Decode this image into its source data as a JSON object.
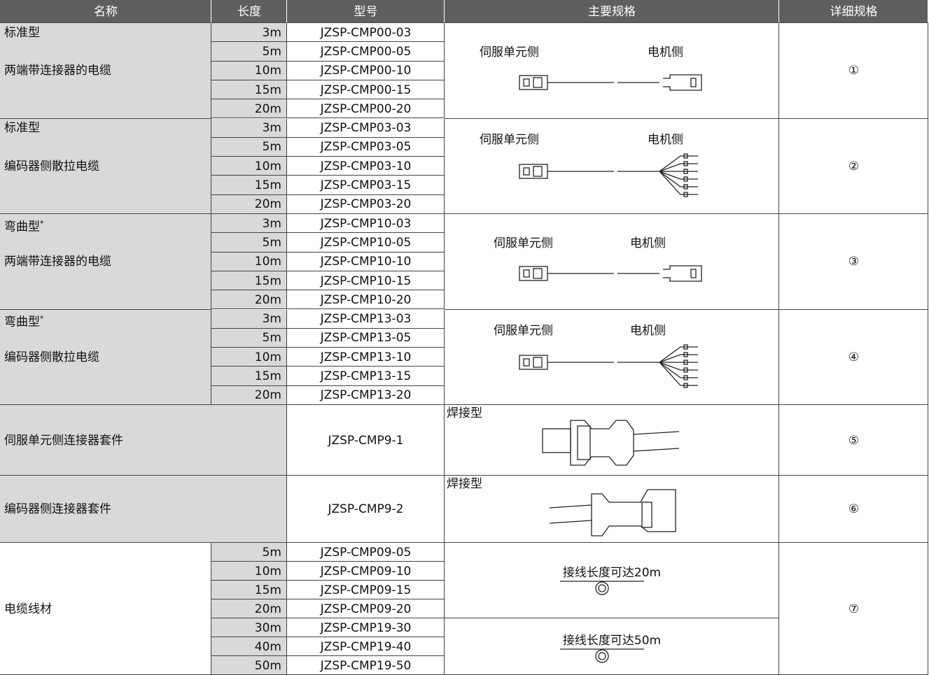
{
  "header": [
    "名称",
    "长度",
    "型号",
    "主要规格",
    "详细规格"
  ],
  "groups": [
    {
      "name": [
        "标准型",
        "两端带连接器的电缆"
      ],
      "rows": [
        [
          "3m",
          "JZSP-CMP00-03"
        ],
        [
          "5m",
          "JZSP-CMP00-05"
        ],
        [
          "10m",
          "JZSP-CMP00-10"
        ],
        [
          "15m",
          "JZSP-CMP00-15"
        ],
        [
          "20m",
          "JZSP-CMP00-20"
        ]
      ],
      "spec": [
        "伺服单元侧",
        "电机侧"
      ],
      "detail": "①"
    },
    {
      "name": [
        "标准型",
        "编码器侧散拉电缆"
      ],
      "rows": [
        [
          "3m",
          "JZSP-CMP03-03"
        ],
        [
          "5m",
          "JZSP-CMP03-05"
        ],
        [
          "10m",
          "JZSP-CMP03-10"
        ],
        [
          "15m",
          "JZSP-CMP03-15"
        ],
        [
          "20m",
          "JZSP-CMP03-20"
        ]
      ],
      "spec": [
        "伺服单元侧",
        "电机侧"
      ],
      "detail": "②"
    },
    {
      "name": [
        "弯曲型",
        "两端带连接器的电缆"
      ],
      "note": "*",
      "rows": [
        [
          "3m",
          "JZSP-CMP10-03"
        ],
        [
          "5m",
          "JZSP-CMP10-05"
        ],
        [
          "10m",
          "JZSP-CMP10-10"
        ],
        [
          "15m",
          "JZSP-CMP10-15"
        ],
        [
          "20m",
          "JZSP-CMP10-20"
        ]
      ],
      "spec": [
        "伺服单元侧",
        "电机侧"
      ],
      "detail": "③"
    },
    {
      "name": [
        "弯曲型",
        "编码器侧散拉电缆"
      ],
      "note": "*",
      "rows": [
        [
          "3m",
          "JZSP-CMP13-03"
        ],
        [
          "5m",
          "JZSP-CMP13-05"
        ],
        [
          "10m",
          "JZSP-CMP13-10"
        ],
        [
          "15m",
          "JZSP-CMP13-15"
        ],
        [
          "20m",
          "JZSP-CMP13-20"
        ]
      ],
      "spec": [
        "伺服单元侧",
        "电机侧"
      ],
      "detail": "④"
    },
    {
      "name": [
        "伺服单元侧连接器套件"
      ],
      "model": "JZSP-CMP9-1",
      "spec": [
        "焊接型"
      ],
      "detail": "⑤"
    },
    {
      "name": [
        "编码器侧连接器套件"
      ],
      "model": "JZSP-CMP9-2",
      "spec": [
        "焊接型"
      ],
      "detail": "⑥"
    },
    {
      "name": [
        "电缆线材"
      ],
      "rows": [
        [
          "5m",
          "JZSP-CMP09-05"
        ],
        [
          "10m",
          "JZSP-CMP09-10"
        ],
        [
          "15m",
          "JZSP-CMP09-15"
        ],
        [
          "20m",
          "JZSP-CMP09-20"
        ],
        [
          "30m",
          "JZSP-CMP19-30"
        ],
        [
          "40m",
          "JZSP-CMP19-40"
        ],
        [
          "50m",
          "JZSP-CMP19-50"
        ]
      ],
      "spec": [
        "接线长度可达20m",
        "接线长度可达50m"
      ],
      "detail": "⑦"
    }
  ]
}
